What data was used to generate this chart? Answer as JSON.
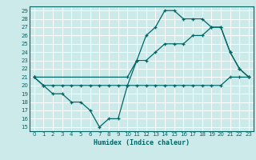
{
  "xlabel": "Humidex (Indice chaleur)",
  "bg_color": "#cceaea",
  "grid_color": "#ffffff",
  "line_color": "#006666",
  "xlim": [
    -0.5,
    23.5
  ],
  "ylim": [
    14.5,
    29.5
  ],
  "yticks": [
    15,
    16,
    17,
    18,
    19,
    20,
    21,
    22,
    23,
    24,
    25,
    26,
    27,
    28,
    29
  ],
  "xticks": [
    0,
    1,
    2,
    3,
    4,
    5,
    6,
    7,
    8,
    9,
    10,
    11,
    12,
    13,
    14,
    15,
    16,
    17,
    18,
    19,
    20,
    21,
    22,
    23
  ],
  "line1_x": [
    0,
    1,
    2,
    3,
    4,
    5,
    6,
    7,
    8,
    9,
    10,
    11,
    12,
    13,
    14,
    15,
    16,
    17,
    18,
    19,
    20,
    21,
    22,
    23
  ],
  "line1_y": [
    21,
    20,
    20,
    20,
    20,
    20,
    20,
    20,
    20,
    20,
    20,
    20,
    20,
    20,
    20,
    20,
    20,
    20,
    20,
    20,
    20,
    21,
    21,
    21
  ],
  "line2_x": [
    0,
    10,
    11,
    12,
    13,
    14,
    15,
    16,
    17,
    18,
    19,
    20,
    21,
    22,
    23
  ],
  "line2_y": [
    21,
    21,
    23,
    23,
    24,
    25,
    25,
    25,
    26,
    26,
    27,
    27,
    24,
    22,
    21
  ],
  "line3_x": [
    0,
    1,
    2,
    3,
    4,
    5,
    6,
    7,
    8,
    9,
    10,
    11,
    12,
    13,
    14,
    15,
    16,
    17,
    18,
    19,
    20,
    21,
    22,
    23
  ],
  "line3_y": [
    21,
    20,
    19,
    19,
    18,
    18,
    17,
    15,
    16,
    16,
    20,
    23,
    26,
    27,
    29,
    29,
    28,
    28,
    28,
    27,
    27,
    24,
    22,
    21
  ]
}
